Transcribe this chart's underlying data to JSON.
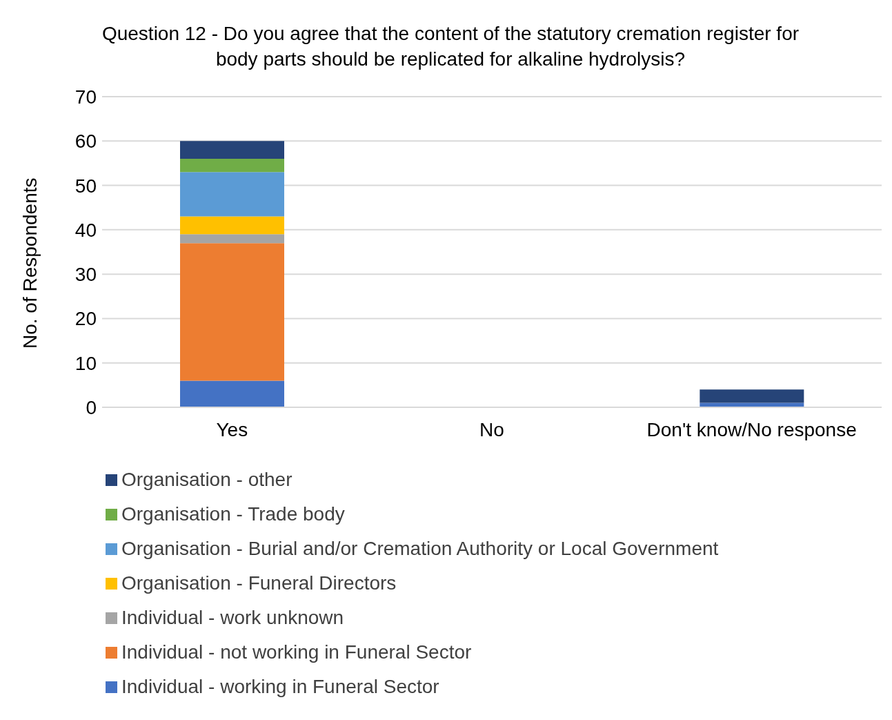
{
  "chart_data": {
    "type": "bar",
    "title": "Question 12 - Do you agree that the content of the statutory cremation register for body parts should be replicated for alkaline hydrolysis?",
    "ylabel": "No. of Respondents",
    "categories": [
      "Yes",
      "No",
      "Don't know/No response"
    ],
    "stacked": true,
    "series": [
      {
        "name": "Individual - working in Funeral Sector",
        "color": "#4472c4",
        "values": [
          6,
          0,
          1
        ]
      },
      {
        "name": "Individual - not working in Funeral Sector",
        "color": "#ed7d31",
        "values": [
          31,
          0,
          0
        ]
      },
      {
        "name": "Individual - work unknown",
        "color": "#a5a5a5",
        "values": [
          2,
          0,
          0
        ]
      },
      {
        "name": "Organisation - Funeral Directors",
        "color": "#ffc000",
        "values": [
          4,
          0,
          0
        ]
      },
      {
        "name": "Organisation - Burial and/or Cremation Authority or Local Government",
        "color": "#5b9bd5",
        "values": [
          10,
          0,
          0
        ]
      },
      {
        "name": "Organisation - Trade body",
        "color": "#70ad47",
        "values": [
          3,
          0,
          0
        ]
      },
      {
        "name": "Organisation - other",
        "color": "#264478",
        "values": [
          4,
          0,
          3
        ]
      }
    ],
    "ylim": [
      0,
      70
    ],
    "yticks": [
      0,
      10,
      20,
      30,
      40,
      50,
      60,
      70
    ],
    "grid": "y",
    "legend": "bottom"
  }
}
